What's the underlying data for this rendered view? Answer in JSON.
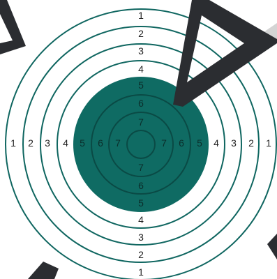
{
  "target": {
    "outer_ring_labels": [
      "1",
      "2",
      "3",
      "4"
    ],
    "inner_ring_labels": [
      "5",
      "6",
      "7"
    ],
    "colors": {
      "background": "#ffffff",
      "ring_stroke": "#0f6660",
      "bullseye_fill": "#0f6b63",
      "inner_ring_stroke": "#0a4a45",
      "outer_label": "#222222",
      "inner_label": "#0b2e2b",
      "arrow": "#2b2d31",
      "arrow_light": "#d4d4d4"
    }
  }
}
